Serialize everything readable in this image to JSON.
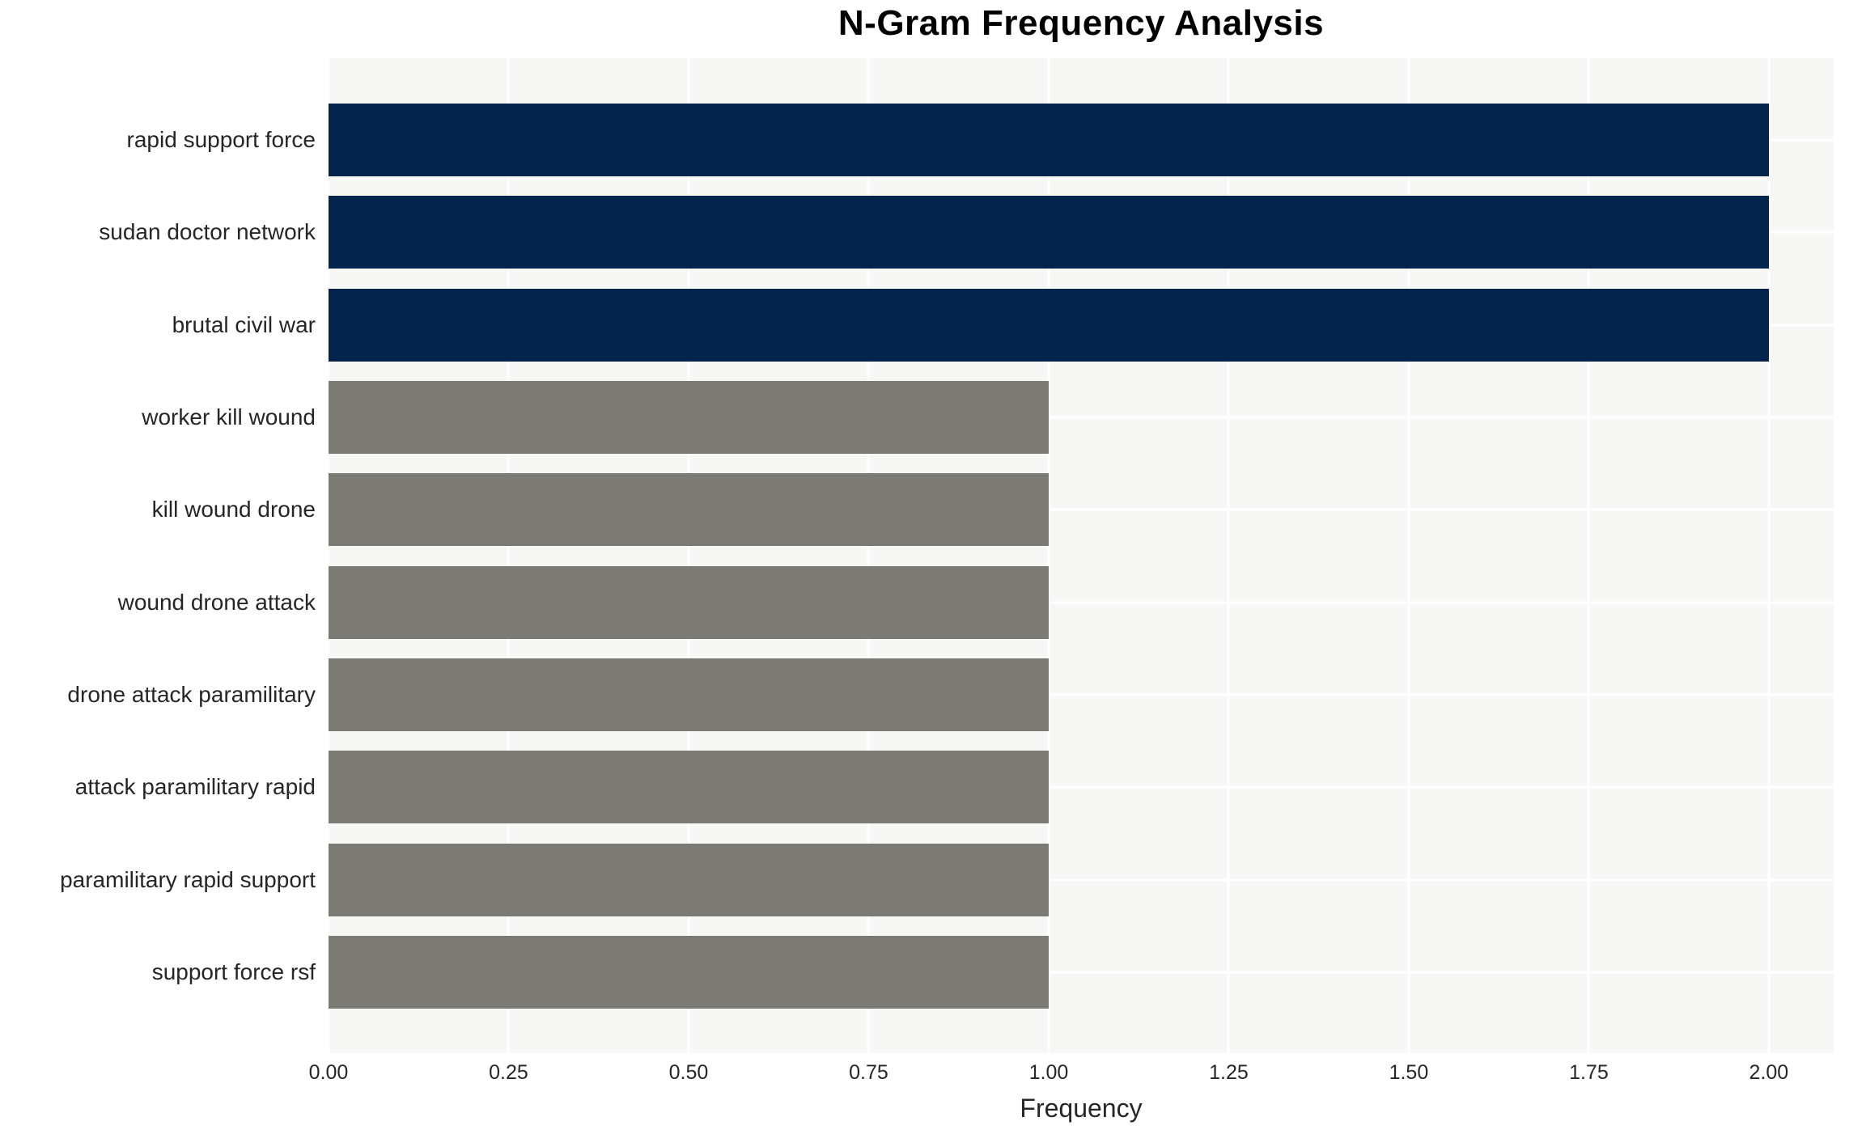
{
  "chart_data": {
    "type": "bar",
    "orientation": "horizontal",
    "title": "N-Gram Frequency Analysis",
    "xlabel": "Frequency",
    "ylabel": "",
    "categories": [
      "rapid support force",
      "sudan doctor network",
      "brutal civil war",
      "worker kill wound",
      "kill wound drone",
      "wound drone attack",
      "drone attack paramilitary",
      "attack paramilitary rapid",
      "paramilitary rapid support",
      "support force rsf"
    ],
    "values": [
      2,
      2,
      2,
      1,
      1,
      1,
      1,
      1,
      1,
      1
    ],
    "bar_colors": [
      "#02244c",
      "#02244c",
      "#02244c",
      "#7b7a74",
      "#7b7a74",
      "#7b7a74",
      "#7b7a74",
      "#7b7a74",
      "#7b7a74",
      "#7b7a74"
    ],
    "xlim": [
      0,
      2.09
    ],
    "xticks": [
      0,
      0.25,
      0.5,
      0.75,
      1,
      1.25,
      1.5,
      1.75,
      2
    ],
    "xtick_labels": [
      "0.00",
      "0.25",
      "0.50",
      "0.75",
      "1.00",
      "1.25",
      "1.50",
      "1.75",
      "2.00"
    ],
    "grid": true,
    "legend_position": "none",
    "colors": {
      "high_freq_bar": "#02244c",
      "low_freq_bar": "#7b7a74",
      "plot_background": "#f7f7f6",
      "gridline": "#ffffff",
      "tick_text": "#262626",
      "title_text": "#000000"
    }
  }
}
